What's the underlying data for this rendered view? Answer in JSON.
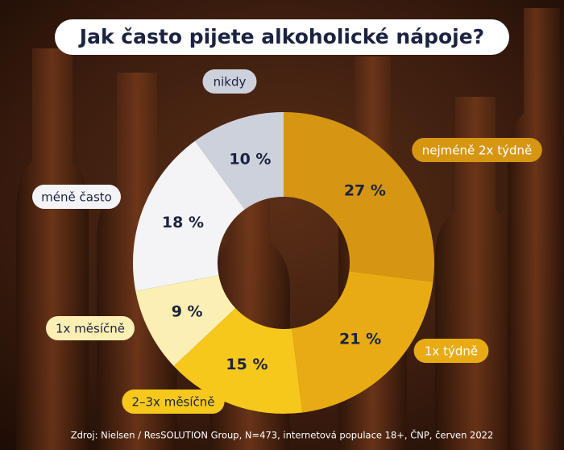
{
  "chart_data": {
    "type": "donut",
    "title": "Jak často pijete alkoholické nápoje?",
    "source": "Zdroj: Nielsen / ResSOLUTION Group, N=473, internetová populace 18+, ČNP, červen 2022",
    "categories": [
      "nejméně 2x týdně",
      "1x týdně",
      "2–3x měsíčně",
      "1x měsíčně",
      "méně často",
      "nikdy"
    ],
    "values": [
      27,
      21,
      15,
      9,
      18,
      10
    ],
    "value_labels": [
      "27 %",
      "21 %",
      "15 %",
      "9 %",
      "18 %",
      "10 %"
    ],
    "colors": [
      "#d69612",
      "#e9ab14",
      "#f6c81c",
      "#fcefb4",
      "#f4f4f6",
      "#cdd1db"
    ]
  }
}
